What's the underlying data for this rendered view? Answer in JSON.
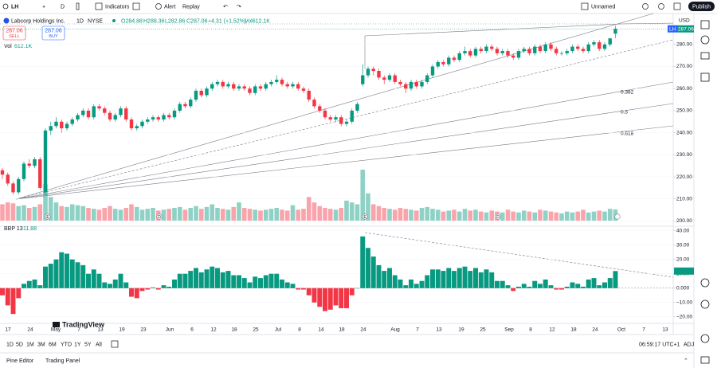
{
  "toolbar": {
    "symbol": "LH",
    "interval": "D",
    "indicators": "Indicators",
    "alert": "Alert",
    "replay": "Replay",
    "layout_name": "Unnamed",
    "publish": "Publish"
  },
  "legend": {
    "name": "Labcorp Holdings Inc.",
    "interval": "1D",
    "exchange": "NYSE",
    "open": "O284.88",
    "high": "H288.36",
    "low": "L282.86",
    "close": "C287.06",
    "change": "+4.31 (+1.52%)",
    "volume": "Vol612.1K"
  },
  "trade": {
    "sell_price": "287.06",
    "sell": "SELL",
    "buy_price": "287.06",
    "buy": "BUY"
  },
  "volume_label": {
    "name": "Vol",
    "value": "612.1K"
  },
  "chart": {
    "currency": "USD",
    "symbol_tag": "LH",
    "price_tag": "287.06",
    "ylim": [
      198,
      294
    ],
    "yticks": [
      {
        "value": 280,
        "label": "280.00"
      },
      {
        "value": 270,
        "label": "270.00"
      },
      {
        "value": 260,
        "label": "260.00"
      },
      {
        "value": 250,
        "label": "250.00"
      },
      {
        "value": 240,
        "label": "240.00"
      },
      {
        "value": 230,
        "label": "230.00"
      },
      {
        "value": 220,
        "label": "220.00"
      },
      {
        "value": 210,
        "label": "210.00"
      },
      {
        "value": 200,
        "label": "200.00"
      }
    ],
    "candles": [
      [
        223,
        224,
        219,
        221
      ],
      [
        221,
        222,
        216,
        217
      ],
      [
        217,
        218,
        212,
        213
      ],
      [
        213,
        220,
        212,
        219
      ],
      [
        219,
        227,
        218,
        226
      ],
      [
        226,
        228,
        224,
        225
      ],
      [
        225,
        229,
        224,
        228
      ],
      [
        228,
        229,
        214,
        215
      ],
      [
        213,
        242,
        212,
        241
      ],
      [
        241,
        245,
        239,
        243
      ],
      [
        243,
        247,
        242,
        245
      ],
      [
        245,
        246,
        240,
        242
      ],
      [
        242,
        245,
        241,
        244
      ],
      [
        244,
        247,
        243,
        246
      ],
      [
        246,
        249,
        245,
        248
      ],
      [
        248,
        251,
        247,
        250
      ],
      [
        250,
        251,
        246,
        247
      ],
      [
        247,
        253,
        246,
        252
      ],
      [
        252,
        253,
        250,
        251
      ],
      [
        251,
        252,
        248,
        249
      ],
      [
        249,
        250,
        245,
        246
      ],
      [
        246,
        249,
        245,
        248
      ],
      [
        248,
        252,
        247,
        251
      ],
      [
        251,
        252,
        245,
        246
      ],
      [
        246,
        247,
        241,
        242
      ],
      [
        242,
        244,
        241,
        243
      ],
      [
        243,
        246,
        242,
        245
      ],
      [
        245,
        247,
        244,
        246
      ],
      [
        246,
        248,
        245,
        247
      ],
      [
        247,
        248,
        245,
        246
      ],
      [
        246,
        249,
        245,
        248
      ],
      [
        248,
        249,
        246,
        247
      ],
      [
        247,
        251,
        246,
        250
      ],
      [
        250,
        254,
        249,
        253
      ],
      [
        253,
        254,
        251,
        252
      ],
      [
        252,
        256,
        251,
        255
      ],
      [
        255,
        260,
        254,
        259
      ],
      [
        259,
        260,
        256,
        257
      ],
      [
        257,
        261,
        256,
        260
      ],
      [
        260,
        263,
        259,
        262
      ],
      [
        262,
        264,
        261,
        263
      ],
      [
        263,
        264,
        260,
        261
      ],
      [
        261,
        263,
        260,
        262
      ],
      [
        262,
        263,
        259,
        260
      ],
      [
        260,
        262,
        259,
        261
      ],
      [
        261,
        262,
        259,
        260
      ],
      [
        260,
        261,
        257,
        258
      ],
      [
        258,
        262,
        257,
        261
      ],
      [
        261,
        262,
        259,
        260
      ],
      [
        260,
        263,
        259,
        262
      ],
      [
        262,
        264,
        261,
        263
      ],
      [
        263,
        266,
        262,
        264
      ],
      [
        264,
        265,
        261,
        262
      ],
      [
        262,
        263,
        260,
        261
      ],
      [
        261,
        263,
        260,
        262
      ],
      [
        262,
        263,
        259,
        260
      ],
      [
        260,
        261,
        258,
        259
      ],
      [
        259,
        260,
        254,
        255
      ],
      [
        255,
        256,
        251,
        252
      ],
      [
        252,
        253,
        249,
        250
      ],
      [
        250,
        251,
        246,
        247
      ],
      [
        247,
        248,
        245,
        246
      ],
      [
        246,
        248,
        245,
        247
      ],
      [
        247,
        248,
        243,
        244
      ],
      [
        244,
        246,
        243,
        245
      ],
      [
        245,
        251,
        244,
        250
      ],
      [
        250,
        254,
        249,
        253
      ],
      [
        262,
        271,
        261,
        266
      ],
      [
        266,
        270,
        265,
        269
      ],
      [
        269,
        270,
        266,
        268
      ],
      [
        268,
        269,
        264,
        265
      ],
      [
        265,
        266,
        262,
        264
      ],
      [
        264,
        267,
        263,
        266
      ],
      [
        266,
        267,
        262,
        263
      ],
      [
        263,
        264,
        261,
        262
      ],
      [
        262,
        263,
        258,
        260
      ],
      [
        260,
        264,
        259,
        263
      ],
      [
        263,
        264,
        260,
        261
      ],
      [
        261,
        264,
        260,
        263
      ],
      [
        263,
        267,
        262,
        266
      ],
      [
        266,
        271,
        265,
        270
      ],
      [
        270,
        273,
        269,
        272
      ],
      [
        272,
        273,
        270,
        271
      ],
      [
        271,
        275,
        270,
        274
      ],
      [
        274,
        275,
        272,
        273
      ],
      [
        273,
        277,
        272,
        276
      ],
      [
        276,
        279,
        275,
        277
      ],
      [
        277,
        278,
        274,
        275
      ],
      [
        275,
        279,
        274,
        278
      ],
      [
        278,
        279,
        276,
        277
      ],
      [
        277,
        280,
        276,
        279
      ],
      [
        279,
        280,
        277,
        278
      ],
      [
        278,
        279,
        275,
        276
      ],
      [
        276,
        278,
        275,
        277
      ],
      [
        277,
        278,
        274,
        275
      ],
      [
        275,
        276,
        273,
        274
      ],
      [
        274,
        278,
        273,
        277
      ],
      [
        277,
        279,
        276,
        278
      ],
      [
        278,
        279,
        275,
        276
      ],
      [
        276,
        280,
        275,
        279
      ],
      [
        279,
        280,
        276,
        277
      ],
      [
        277,
        281,
        276,
        280
      ],
      [
        280,
        281,
        277,
        278
      ],
      [
        278,
        279,
        275,
        276
      ],
      [
        276,
        277,
        275,
        276
      ],
      [
        276,
        278,
        275,
        277
      ],
      [
        277,
        280,
        276,
        279
      ],
      [
        279,
        280,
        277,
        278
      ],
      [
        278,
        279,
        276,
        277
      ],
      [
        277,
        281,
        276,
        280
      ],
      [
        280,
        282,
        279,
        281
      ],
      [
        281,
        282,
        277,
        278
      ],
      [
        278,
        281,
        277,
        280
      ],
      [
        280,
        283,
        279,
        282.75
      ],
      [
        284.88,
        288.36,
        282.86,
        287.06
      ]
    ],
    "volume": [
      900,
      1000,
      950,
      800,
      850,
      700,
      750,
      900,
      2000,
      1300,
      1000,
      800,
      750,
      900,
      850,
      800,
      700,
      650,
      600,
      700,
      800,
      650,
      600,
      700,
      900,
      750,
      600,
      650,
      700,
      550,
      600,
      650,
      700,
      750,
      600,
      700,
      800,
      650,
      750,
      900,
      700,
      650,
      600,
      750,
      1000,
      700,
      650,
      600,
      550,
      600,
      650,
      700,
      600,
      550,
      850,
      600,
      650,
      1300,
      1000,
      800,
      700,
      650,
      600,
      700,
      1100,
      1000,
      900,
      2800,
      1500,
      900,
      800,
      700,
      650,
      600,
      700,
      650,
      600,
      550,
      700,
      750,
      650,
      600,
      500,
      550,
      600,
      500,
      650,
      550,
      600,
      500,
      450,
      550,
      500,
      450,
      600,
      500,
      450,
      550,
      500,
      450,
      600,
      550,
      500,
      450,
      400,
      500,
      450,
      500,
      600,
      450,
      500,
      550,
      500,
      650,
      612.1
    ],
    "fib_levels": [
      "0.382",
      "0.5",
      "0.618"
    ],
    "events": [
      "E",
      "D",
      "E",
      "D"
    ],
    "x_labels": [
      "17",
      "24",
      "May",
      "7",
      "13",
      "19",
      "23",
      "Jun",
      "6",
      "12",
      "18",
      "25",
      "Jul",
      "8",
      "14",
      "18",
      "24",
      "Aug",
      "7",
      "13",
      "19",
      "25",
      "Sep",
      "8",
      "12",
      "18",
      "24",
      "Oct",
      "7",
      "13"
    ]
  },
  "bbp": {
    "name": "BBP 13",
    "last": "11.88",
    "ylim": [
      -24,
      42
    ],
    "yticks": [
      {
        "value": 40,
        "label": "40.00"
      },
      {
        "value": 30,
        "label": "30.00"
      },
      {
        "value": 20,
        "label": "20.00"
      },
      {
        "value": 10,
        "label": "10.00"
      },
      {
        "value": 0,
        "label": "0.000"
      },
      {
        "value": -10,
        "label": "−10.00"
      },
      {
        "value": -20,
        "label": "−20.00"
      }
    ],
    "values": [
      -5,
      -12,
      -18,
      -7,
      3,
      5,
      6,
      2,
      15,
      17,
      20,
      25,
      24,
      20,
      18,
      16,
      10,
      13,
      10,
      4,
      3,
      6,
      10,
      4,
      -6,
      -7,
      -2,
      -1,
      0.5,
      -1,
      2,
      1,
      6,
      10,
      10,
      12,
      14,
      11,
      13,
      15,
      14,
      11,
      12,
      9,
      9,
      7,
      4,
      8,
      7,
      9,
      10,
      10,
      6,
      4,
      3,
      -1,
      -1,
      -5,
      -10,
      -13,
      -16,
      -15,
      -12,
      -14,
      -14,
      -5,
      0,
      36,
      28,
      22,
      16,
      12,
      14,
      9,
      6,
      2,
      6,
      3,
      5,
      9,
      13,
      13,
      12,
      14,
      12,
      14,
      15,
      12,
      14,
      11,
      13,
      11,
      5,
      5,
      2,
      -2,
      1,
      3,
      1,
      5,
      3,
      6,
      2,
      -1,
      -1,
      1,
      4,
      3,
      1,
      6,
      7,
      2,
      4,
      7,
      11.88
    ]
  },
  "bottom_bar": {
    "ranges": [
      "1D",
      "5D",
      "1M",
      "3M",
      "6M",
      "YTD",
      "1Y",
      "5Y",
      "All"
    ],
    "clock": "06:59:17 UTC+1",
    "adj": "ADJ"
  },
  "footer": {
    "pine_editor": "Pine Editor",
    "trading_panel": "Trading Panel"
  },
  "logo": "TradingView"
}
